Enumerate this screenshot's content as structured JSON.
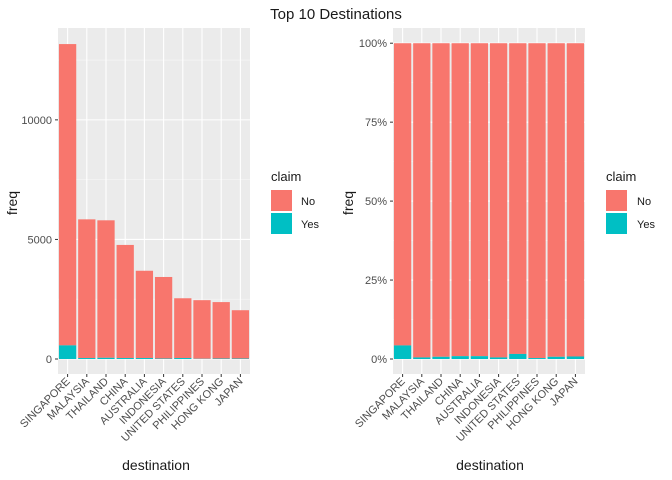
{
  "title": "Top 10 Destinations",
  "legend": {
    "title": "claim",
    "items": [
      {
        "label": "No",
        "color": "#F8766D"
      },
      {
        "label": "Yes",
        "color": "#00BFC4"
      }
    ]
  },
  "chart_data": [
    {
      "type": "bar",
      "stacked": true,
      "xlabel": "destination",
      "ylabel": "freq",
      "ylim": [
        0,
        13800
      ],
      "yticks": [
        0,
        5000,
        10000
      ],
      "ytick_labels": [
        "0",
        "5000",
        "10000"
      ],
      "categories": [
        "SINGAPORE",
        "MALAYSIA",
        "THAILAND",
        "CHINA",
        "AUSTRALIA",
        "INDONESIA",
        "UNITED STATES",
        "PHILIPPINES",
        "HONG KONG",
        "JAPAN"
      ],
      "series": [
        {
          "name": "No",
          "color": "#F8766D",
          "values": [
            12600,
            5800,
            5750,
            4730,
            3650,
            3410,
            2500,
            2450,
            2360,
            2020
          ]
        },
        {
          "name": "Yes",
          "color": "#00BFC4",
          "values": [
            570,
            40,
            50,
            40,
            40,
            20,
            40,
            10,
            20,
            20
          ]
        }
      ],
      "grid": true,
      "legend_position": "right"
    },
    {
      "type": "bar",
      "stacked": true,
      "normalized": true,
      "xlabel": "destination",
      "ylabel": "freq",
      "ylim": [
        0,
        1.045
      ],
      "yticks": [
        0,
        0.25,
        0.5,
        0.75,
        1.0
      ],
      "ytick_labels": [
        "0%",
        "25%",
        "50%",
        "75%",
        "100%"
      ],
      "categories": [
        "SINGAPORE",
        "MALAYSIA",
        "THAILAND",
        "CHINA",
        "AUSTRALIA",
        "INDONESIA",
        "UNITED STATES",
        "PHILIPPINES",
        "HONG KONG",
        "JAPAN"
      ],
      "series": [
        {
          "name": "No",
          "color": "#F8766D",
          "values": [
            0.957,
            0.995,
            0.993,
            0.991,
            0.991,
            0.995,
            0.984,
            0.997,
            0.993,
            0.992
          ]
        },
        {
          "name": "Yes",
          "color": "#00BFC4",
          "values": [
            0.043,
            0.005,
            0.007,
            0.009,
            0.009,
            0.005,
            0.016,
            0.003,
            0.007,
            0.008
          ]
        }
      ],
      "grid": true,
      "legend_position": "right"
    }
  ]
}
